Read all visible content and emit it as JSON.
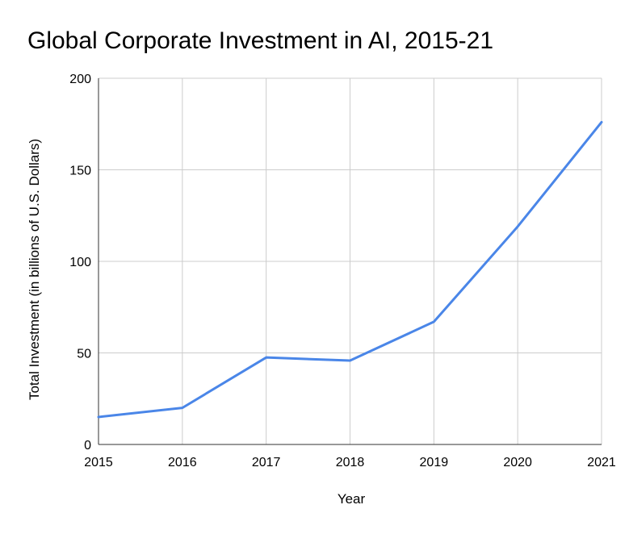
{
  "chart_data": {
    "type": "line",
    "title": "Global Corporate Investment in AI, 2015-21",
    "xlabel": "Year",
    "ylabel": "Total Investment (in billions of U.S. Dollars)",
    "x": [
      "2015",
      "2016",
      "2017",
      "2018",
      "2019",
      "2020",
      "2021"
    ],
    "series": [
      {
        "values": [
          15,
          20,
          47.5,
          45.8,
          67,
          119,
          176
        ]
      }
    ],
    "ylim": [
      0,
      200
    ],
    "yticks": [
      "0",
      "50",
      "100",
      "150",
      "200"
    ],
    "grid": true,
    "line_color": "#4a86e8",
    "grid_color": "#cccccc",
    "axis_color": "#333333"
  }
}
